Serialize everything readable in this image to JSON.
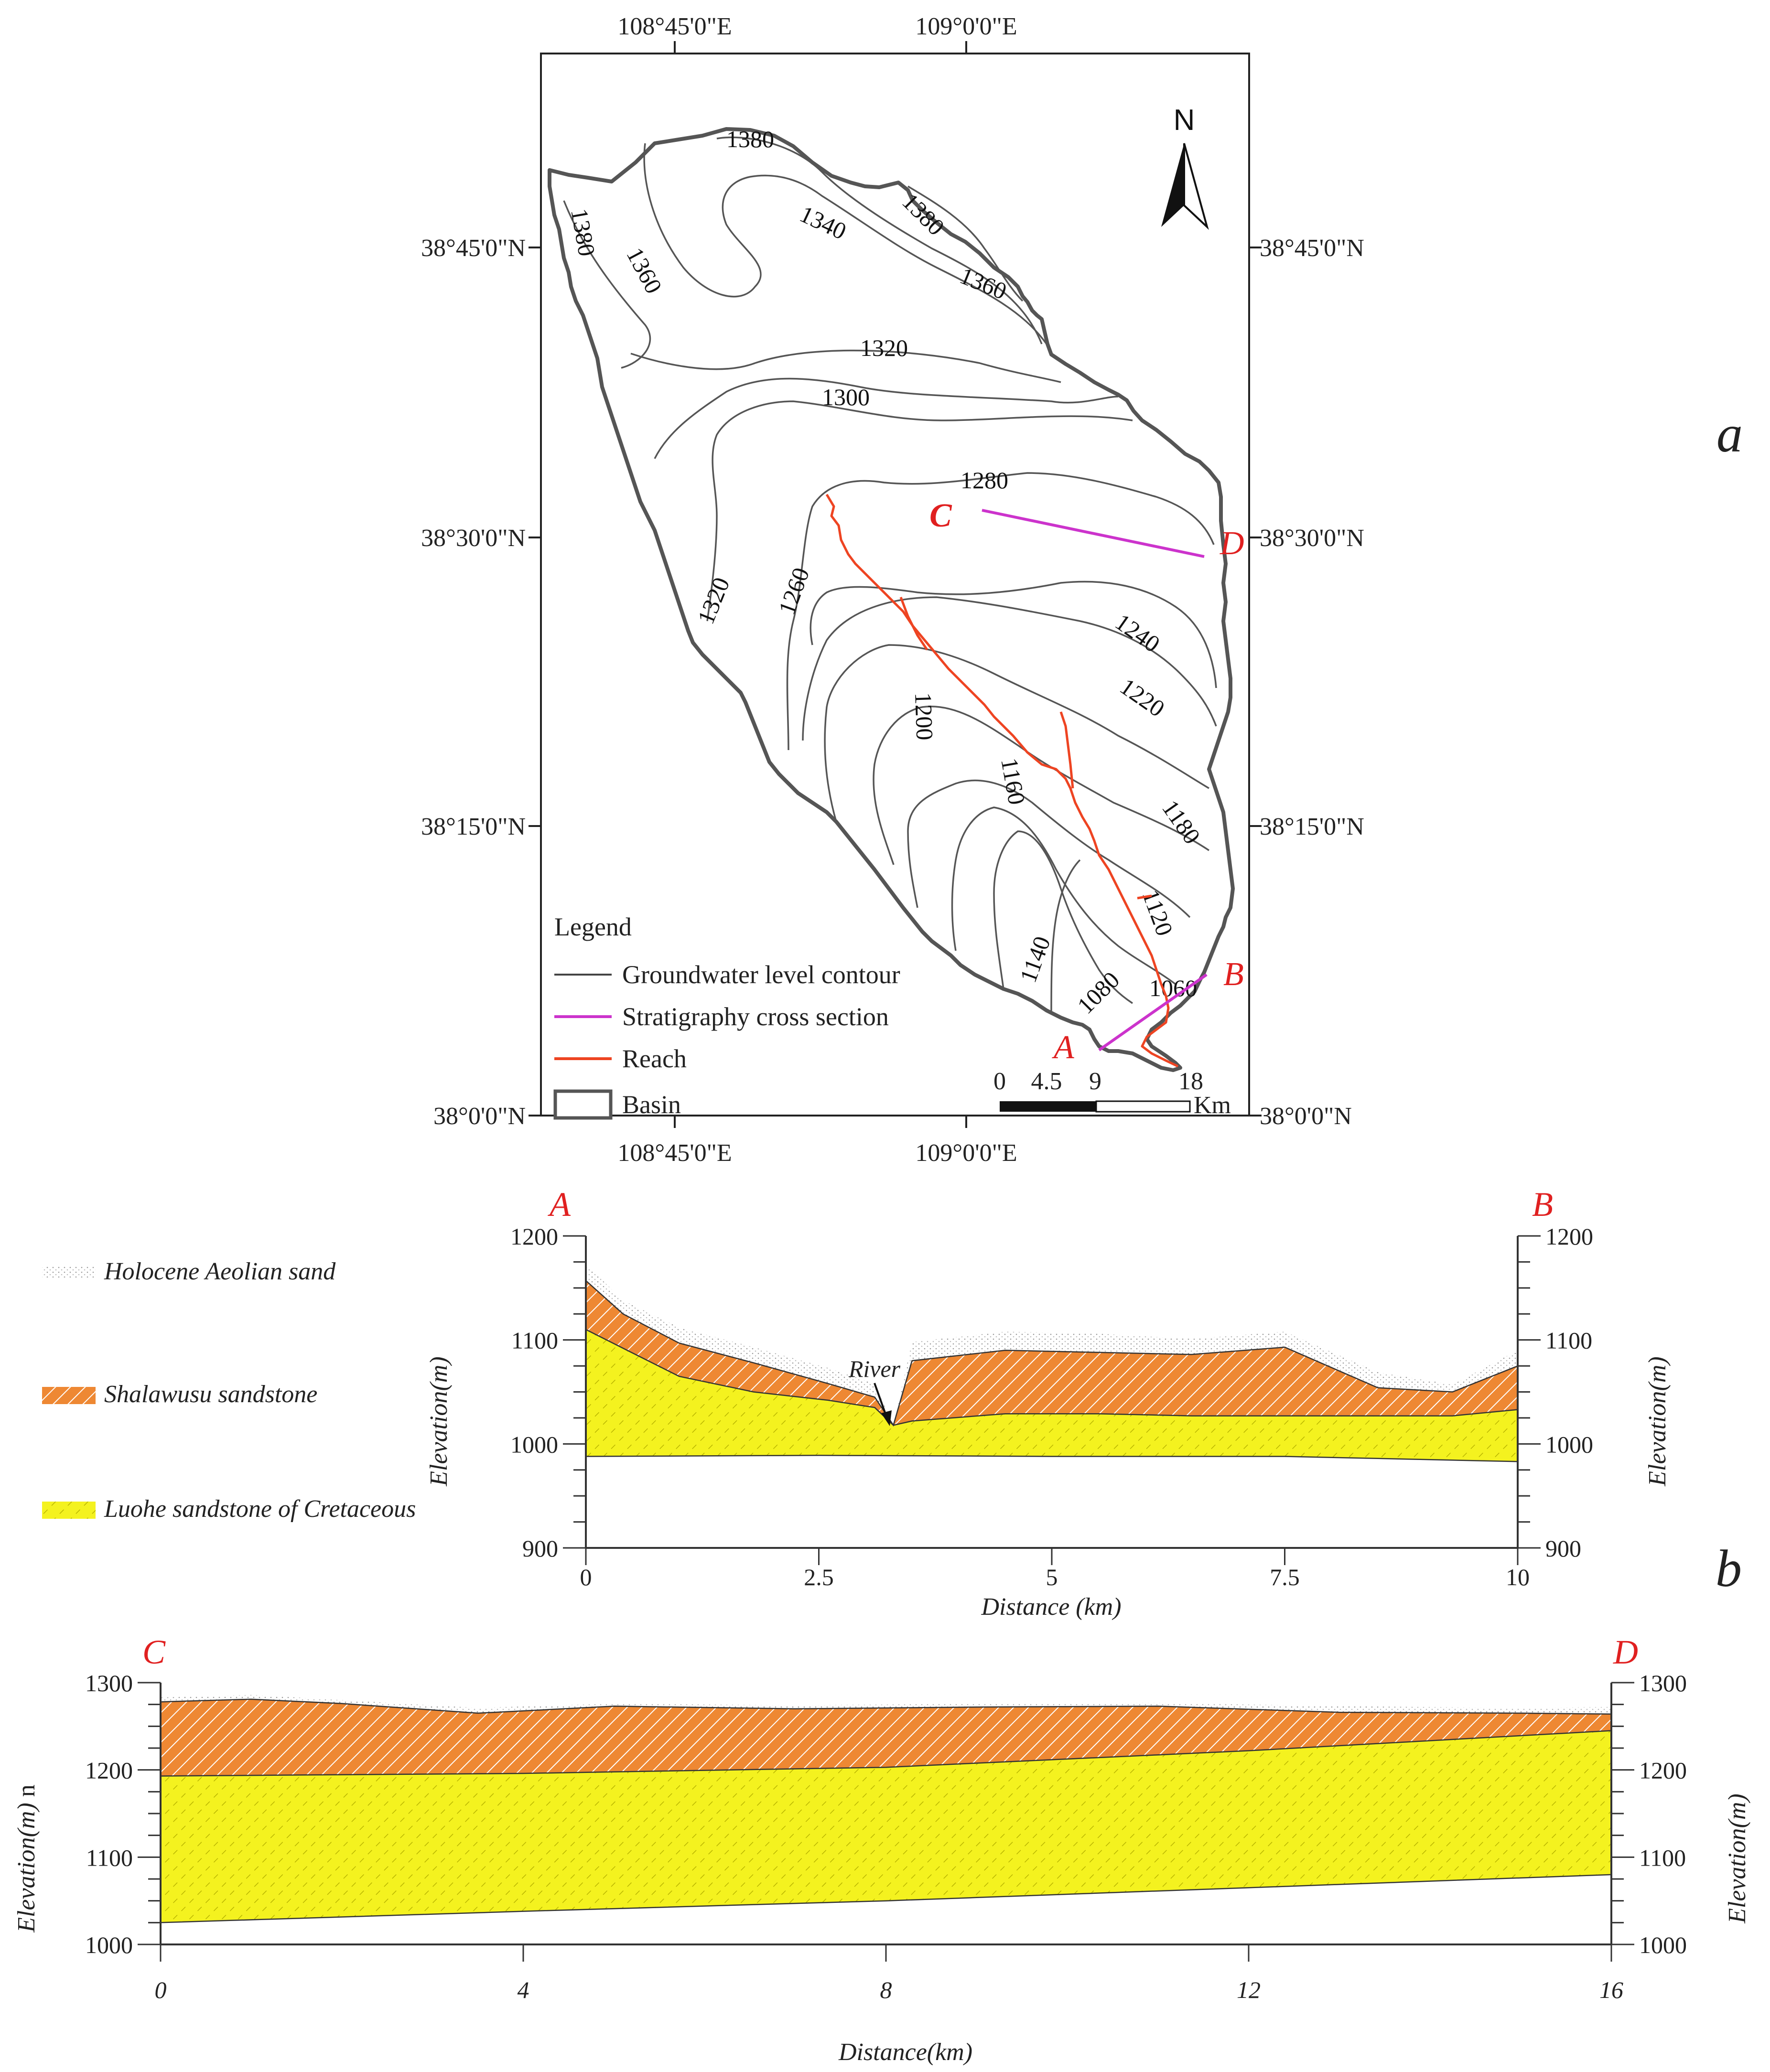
{
  "map": {
    "panel_label": "a",
    "lon_labels": [
      "108°45'0\"E",
      "109°0'0\"E"
    ],
    "lat_labels": [
      "38°45'0\"N",
      "38°30'0\"N",
      "38°15'0\"N",
      "38°0'0\"N"
    ],
    "north_label": "N",
    "contour_labels": [
      "1380",
      "1380",
      "1380",
      "1360",
      "1360",
      "1340",
      "1320",
      "1320",
      "1300",
      "1280",
      "1260",
      "1240",
      "1220",
      "1200",
      "1180",
      "1160",
      "1140",
      "1120",
      "1080",
      "1060"
    ],
    "section_points": {
      "a": "A",
      "b": "B",
      "c": "C",
      "d": "D"
    },
    "legend": {
      "title": "Legend",
      "items": [
        {
          "label": "Groundwater level contour",
          "color": "#444444"
        },
        {
          "label": "Stratigraphy cross section",
          "color": "#cc33cc"
        },
        {
          "label": "Reach",
          "color": "#ee4422"
        },
        {
          "label": "Basin",
          "color": "#555555"
        }
      ]
    },
    "scale_bar": {
      "ticks": [
        "0",
        "4.5",
        "9",
        "18"
      ],
      "unit": "Km"
    }
  },
  "strata_legend": [
    {
      "label": "Holocene Aeolian sand",
      "color": "#bbbbbb"
    },
    {
      "label": "Shalawusu sandstone",
      "color": "#ee8833"
    },
    {
      "label": "Luohe sandstone of Cretaceous",
      "color": "#f2f020"
    }
  ],
  "chart_data": [
    {
      "type": "area",
      "title": "",
      "panel_label": "b",
      "left_end_label": "A",
      "right_end_label": "B",
      "river_label": "River",
      "xlabel": "Distance (km)",
      "ylabel": "Elevation(m)",
      "xlim": [
        0,
        10
      ],
      "ylim": [
        900,
        1200
      ],
      "x_ticks": [
        "0",
        "2.5",
        "5",
        "7.5",
        "10"
      ],
      "y_ticks": [
        "1200",
        "1100",
        "1000",
        "900"
      ],
      "series": [
        {
          "name": "Holocene Aeolian sand",
          "x": [
            0,
            0.4,
            1,
            1.8,
            2.6,
            3.1,
            3.3,
            3.5,
            4.5,
            5.5,
            6.5,
            7.5,
            8.5,
            9.3,
            10
          ],
          "values": [
            1173,
            1138,
            1112,
            1093,
            1073,
            1058,
            1018,
            1098,
            1108,
            1106,
            1101,
            1108,
            1069,
            1057,
            1090
          ]
        },
        {
          "name": "Shalawusu sandstone",
          "x": [
            0,
            0.4,
            1,
            1.8,
            2.6,
            3.1,
            3.3,
            3.5,
            4.5,
            5.5,
            6.5,
            7.5,
            8.5,
            9.3,
            10
          ],
          "values": [
            1157,
            1125,
            1097,
            1078,
            1058,
            1045,
            1018,
            1080,
            1090,
            1088,
            1086,
            1093,
            1054,
            1050,
            1075
          ]
        },
        {
          "name": "Luohe sandstone of Cretaceous",
          "x": [
            0,
            0.4,
            1,
            1.8,
            2.6,
            3.1,
            3.3,
            3.5,
            4.5,
            5.5,
            6.5,
            7.5,
            8.5,
            9.3,
            10
          ],
          "values": [
            1110,
            1092,
            1065,
            1050,
            1042,
            1035,
            1018,
            1022,
            1029,
            1029,
            1027,
            1027,
            1027,
            1027,
            1033
          ]
        },
        {
          "name": "Base",
          "x": [
            0,
            2.5,
            5,
            7.5,
            10
          ],
          "values": [
            988,
            989,
            988,
            988,
            983
          ]
        }
      ]
    },
    {
      "type": "area",
      "title": "",
      "left_end_label": "C",
      "right_end_label": "D",
      "xlabel": "Distance(km)",
      "ylabel": "Elevation(m)",
      "ylabel_suffix": "n",
      "xlim": [
        0,
        16
      ],
      "ylim": [
        1000,
        1300
      ],
      "x_ticks": [
        "0",
        "4",
        "8",
        "12",
        "16"
      ],
      "y_ticks": [
        "1300",
        "1200",
        "1100",
        "1000"
      ],
      "series": [
        {
          "name": "Holocene Aeolian sand",
          "x": [
            0,
            1,
            2,
            3.5,
            5,
            7,
            9,
            11,
            13,
            15,
            16
          ],
          "values": [
            1283,
            1286,
            1280,
            1271,
            1276,
            1274,
            1276,
            1277,
            1273,
            1271,
            1272
          ]
        },
        {
          "name": "Shalawusu sandstone",
          "x": [
            0,
            1,
            2,
            3.5,
            5,
            7,
            9,
            11,
            13,
            15,
            16
          ],
          "values": [
            1278,
            1281,
            1276,
            1265,
            1273,
            1270,
            1272,
            1273,
            1266,
            1265,
            1264
          ]
        },
        {
          "name": "Luohe sandstone of Cretaceous",
          "x": [
            0,
            4,
            8,
            12,
            16
          ],
          "values": [
            1193,
            1196,
            1203,
            1222,
            1245
          ]
        },
        {
          "name": "Base",
          "x": [
            0,
            4,
            8,
            12,
            16
          ],
          "values": [
            1025,
            1038,
            1050,
            1065,
            1080
          ]
        }
      ]
    }
  ]
}
